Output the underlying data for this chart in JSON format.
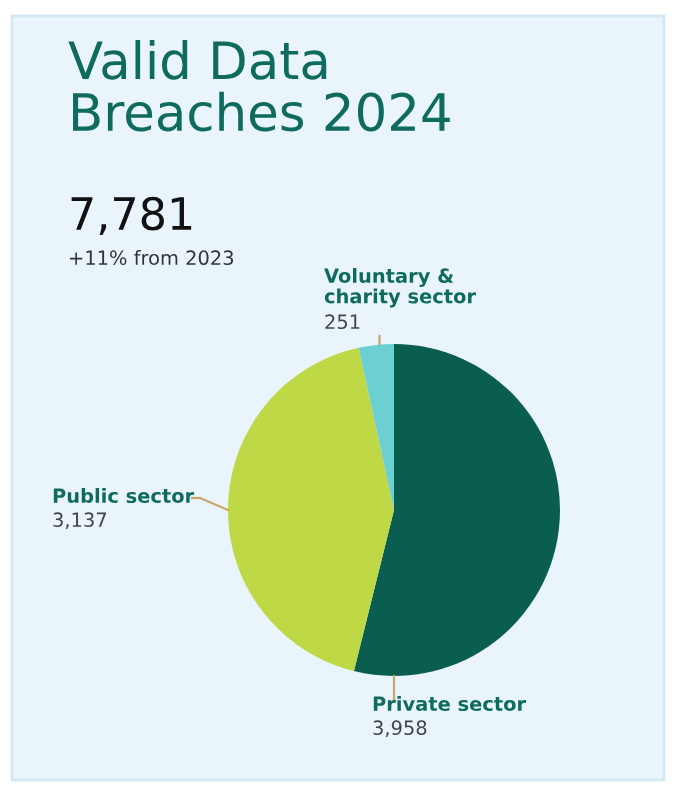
{
  "chart_data": {
    "type": "pie",
    "title": "Valid Data\nBreaches 2024",
    "subtitle": "7,781",
    "annotations": [
      "+11% from 2023"
    ],
    "categories": [
      "Private sector",
      "Public sector",
      "Voluntary &\ncharity sector"
    ],
    "values": [
      3958,
      3137,
      251
    ],
    "value_labels": [
      "3,958",
      "3,137",
      "251"
    ],
    "colors": [
      "#0a5e4f",
      "#bfd946",
      "#6ccfd2"
    ],
    "legend": false
  }
}
